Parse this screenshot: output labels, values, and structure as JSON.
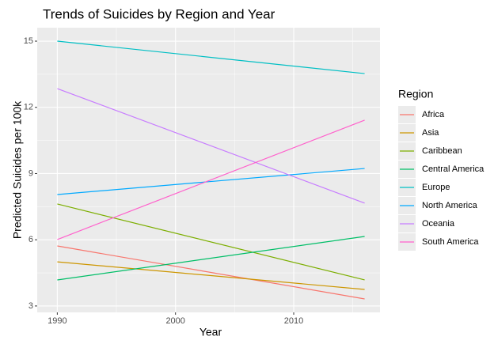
{
  "chart_data": {
    "type": "line",
    "title": "Trends of Suicides by Region and Year",
    "x_label": "Year",
    "y_label": "Predicted Suicides per 100k",
    "legend_title": "Region",
    "legend_position": "right",
    "grid": true,
    "x": [
      1990,
      2016
    ],
    "series": [
      {
        "name": "Africa",
        "color": "#F8766D",
        "values": [
          5.72,
          3.32
        ]
      },
      {
        "name": "Asia",
        "color": "#CD9600",
        "values": [
          5.0,
          3.75
        ]
      },
      {
        "name": "Caribbean",
        "color": "#7CAE00",
        "values": [
          7.62,
          4.18
        ]
      },
      {
        "name": "Central America",
        "color": "#00BE67",
        "values": [
          4.18,
          6.15
        ]
      },
      {
        "name": "Europe",
        "color": "#00BFC4",
        "values": [
          15.0,
          13.53
        ]
      },
      {
        "name": "North America",
        "color": "#00A9FF",
        "values": [
          8.05,
          9.23
        ]
      },
      {
        "name": "Oceania",
        "color": "#C77CFF",
        "values": [
          12.85,
          7.66
        ]
      },
      {
        "name": "South America",
        "color": "#FF61CC",
        "values": [
          6.01,
          11.42
        ]
      }
    ],
    "xlim": [
      1988.3,
      2017.3
    ],
    "xticks": [
      1990,
      2000,
      2010
    ],
    "ylim": [
      2.71,
      15.61
    ],
    "yticks": [
      3,
      6,
      9,
      12,
      15
    ]
  }
}
